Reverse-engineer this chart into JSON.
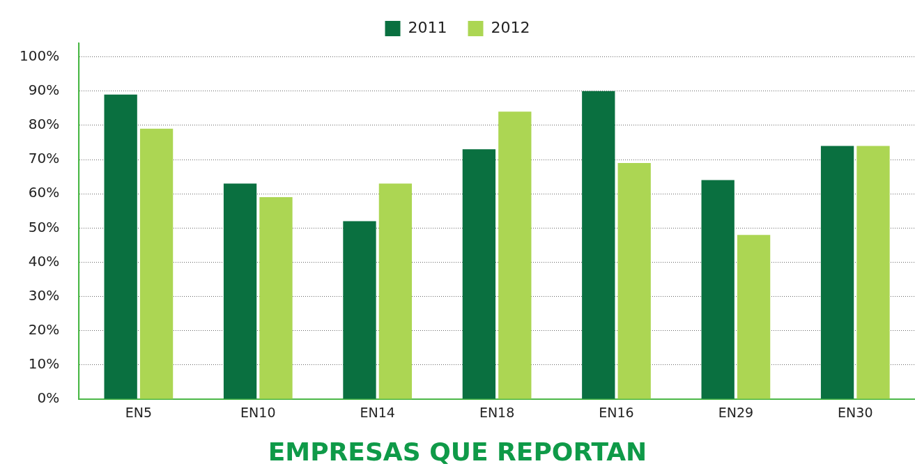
{
  "chart_data": {
    "type": "bar",
    "title": "EMPRESAS QUE REPORTAN",
    "categories": [
      "EN5",
      "EN10",
      "EN14",
      "EN18",
      "EN16",
      "EN29",
      "EN30"
    ],
    "series": [
      {
        "name": "2011",
        "color": "#0a7040",
        "values": [
          89,
          63,
          52,
          73,
          90,
          64,
          74
        ]
      },
      {
        "name": "2012",
        "color": "#acd653",
        "values": [
          79,
          59,
          63,
          84,
          69,
          48,
          74
        ]
      }
    ],
    "ylim": [
      0,
      104
    ],
    "yticks": [
      {
        "value": 0,
        "label": "0%"
      },
      {
        "value": 10,
        "label": "10%"
      },
      {
        "value": 20,
        "label": "20%"
      },
      {
        "value": 30,
        "label": "30%"
      },
      {
        "value": 40,
        "label": "40%"
      },
      {
        "value": 50,
        "label": "50%"
      },
      {
        "value": 60,
        "label": "60%"
      },
      {
        "value": 70,
        "label": "70%"
      },
      {
        "value": 80,
        "label": "80%"
      },
      {
        "value": 90,
        "label": "90%"
      },
      {
        "value": 100,
        "label": "100%"
      }
    ],
    "grid": "y",
    "legend": "top"
  }
}
